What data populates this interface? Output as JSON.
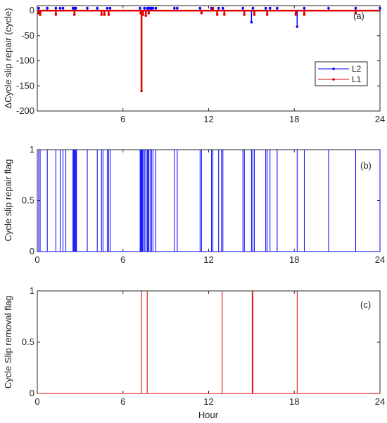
{
  "figure": {
    "xlabel": "Hour"
  },
  "chart_data": [
    {
      "type": "line",
      "panel_label": "(a)",
      "ylabel": "ΔCycle slip repair (cycle)",
      "xlim": [
        0,
        24
      ],
      "ylim": [
        -200,
        10
      ],
      "xticks": [
        6,
        12,
        18,
        24
      ],
      "xtick_labels": [
        "6",
        "12",
        "18",
        "24"
      ],
      "yticks": [
        0,
        -50,
        -100,
        -150,
        -200
      ],
      "ytick_labels": [
        "0",
        "-50",
        "-100",
        "-150",
        "-200"
      ],
      "legend": {
        "placement": "right",
        "entries": [
          "L2",
          "L1"
        ]
      },
      "series": [
        {
          "name": "L2",
          "color": "#0000ff",
          "marker": "dot",
          "points": [
            [
              0.1,
              5
            ],
            [
              0.2,
              -2
            ],
            [
              0.7,
              5
            ],
            [
              1.3,
              5
            ],
            [
              1.6,
              5
            ],
            [
              1.8,
              5
            ],
            [
              2.5,
              5
            ],
            [
              2.6,
              5
            ],
            [
              2.7,
              5
            ],
            [
              3.5,
              5
            ],
            [
              4.2,
              5
            ],
            [
              4.9,
              5
            ],
            [
              5.1,
              5
            ],
            [
              7.2,
              5
            ],
            [
              7.3,
              -2
            ],
            [
              7.5,
              5
            ],
            [
              7.7,
              5
            ],
            [
              7.8,
              5
            ],
            [
              7.9,
              5
            ],
            [
              8.0,
              5
            ],
            [
              8.1,
              5
            ],
            [
              8.3,
              5
            ],
            [
              9.6,
              5
            ],
            [
              9.8,
              5
            ],
            [
              11.4,
              5
            ],
            [
              12.2,
              5
            ],
            [
              12.7,
              5
            ],
            [
              13.0,
              5
            ],
            [
              14.4,
              5
            ],
            [
              15.0,
              -23
            ],
            [
              15.1,
              5
            ],
            [
              16.0,
              5
            ],
            [
              16.3,
              5
            ],
            [
              16.8,
              5
            ],
            [
              18.2,
              -32
            ],
            [
              18.7,
              5
            ],
            [
              20.4,
              5
            ],
            [
              22.3,
              5
            ],
            [
              24.0,
              5
            ]
          ]
        },
        {
          "name": "L1",
          "color": "#e00000",
          "marker": "dot",
          "points": [
            [
              0.1,
              -5
            ],
            [
              0.2,
              -8
            ],
            [
              1.3,
              -8
            ],
            [
              2.6,
              -8
            ],
            [
              4.5,
              -8
            ],
            [
              4.7,
              -8
            ],
            [
              5.0,
              -8
            ],
            [
              7.25,
              -5
            ],
            [
              7.3,
              -160
            ],
            [
              7.4,
              -8
            ],
            [
              7.6,
              -10
            ],
            [
              7.8,
              -5
            ],
            [
              11.5,
              -5
            ],
            [
              12.3,
              5
            ],
            [
              12.6,
              -8
            ],
            [
              13.1,
              -8
            ],
            [
              14.5,
              -8
            ],
            [
              15.2,
              -8
            ],
            [
              16.1,
              -8
            ],
            [
              18.1,
              -8
            ],
            [
              18.7,
              -8
            ],
            [
              22.3,
              -5
            ]
          ]
        }
      ]
    },
    {
      "type": "line",
      "panel_label": "(b)",
      "ylabel": "Cycle slip repair flag",
      "xlim": [
        0,
        24
      ],
      "ylim": [
        0,
        1
      ],
      "xticks": [
        0,
        6,
        12,
        18,
        24
      ],
      "xtick_labels": [
        "0",
        "6",
        "12",
        "18",
        "24"
      ],
      "yticks": [
        0,
        0.5,
        1
      ],
      "ytick_labels": [
        "0",
        "0.5",
        "1"
      ],
      "series": [
        {
          "color": "#0000ff",
          "style": "flag spikes (0 → 1)",
          "x": [
            0.1,
            0.2,
            0.7,
            1.3,
            1.6,
            1.8,
            2.0,
            2.5,
            2.55,
            2.6,
            2.65,
            2.7,
            2.75,
            3.5,
            4.2,
            4.5,
            4.6,
            4.9,
            5.0,
            5.1,
            7.2,
            7.25,
            7.3,
            7.35,
            7.4,
            7.5,
            7.6,
            7.7,
            7.75,
            7.8,
            7.9,
            8.0,
            8.1,
            8.3,
            9.6,
            9.8,
            11.4,
            11.5,
            12.2,
            12.3,
            12.7,
            12.9,
            13.0,
            14.4,
            14.5,
            15.0,
            15.1,
            15.2,
            16.0,
            16.1,
            16.3,
            16.8,
            18.2,
            18.7,
            20.4,
            22.3,
            24.0
          ]
        }
      ]
    },
    {
      "type": "line",
      "panel_label": "(c)",
      "ylabel": "Cycle Slip removal flag",
      "xlabel": "Hour",
      "xlim": [
        0,
        24
      ],
      "ylim": [
        0,
        1
      ],
      "xticks": [
        0,
        6,
        12,
        18,
        24
      ],
      "xtick_labels": [
        "0",
        "6",
        "12",
        "18",
        "24"
      ],
      "yticks": [
        0,
        0.5,
        1
      ],
      "ytick_labels": [
        "0",
        "0.5",
        "1"
      ],
      "series": [
        {
          "color": "#e00000",
          "style": "flag spikes (0 → 1)",
          "x": [
            7.3,
            7.7,
            12.95,
            15.05,
            15.1,
            18.2
          ]
        }
      ]
    }
  ]
}
